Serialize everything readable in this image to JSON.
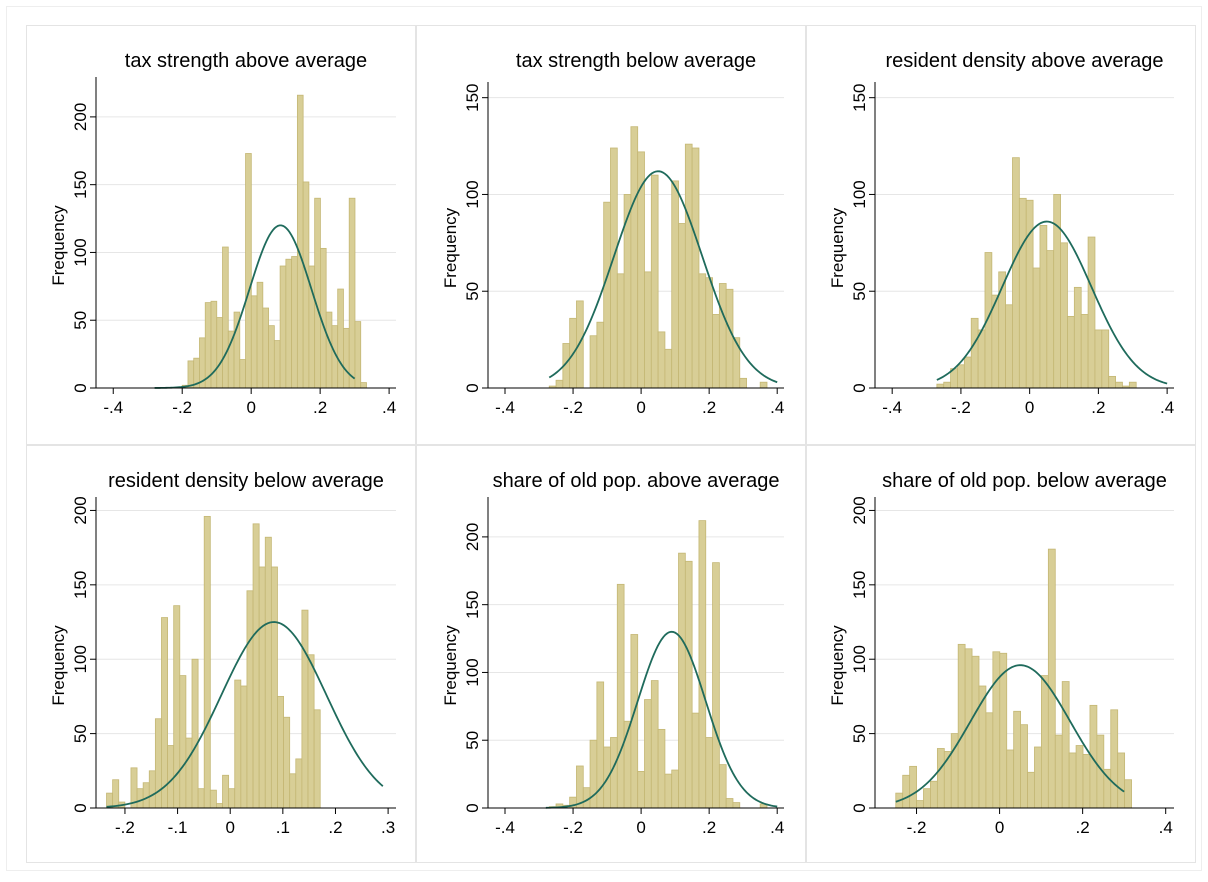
{
  "colors": {
    "bar_fill": "#D8CE96",
    "bar_stroke": "#C4B774",
    "curve": "#1F6B5C",
    "axis": "#000000",
    "grid": "#E6E6E6",
    "panel_border": "#E4E4E4"
  },
  "chart_data": [
    {
      "type": "bar",
      "title": "tax strength above average",
      "ylabel": "Frequency",
      "xlabel": "",
      "xlim": [
        -0.45,
        0.42
      ],
      "ylim": [
        0,
        225
      ],
      "xticks": [
        -0.4,
        -0.2,
        0,
        0.2,
        0.4
      ],
      "xtick_labels": [
        "-.4",
        "-.2",
        "0",
        ".2",
        ".4"
      ],
      "yticks": [
        0,
        50,
        100,
        150,
        200
      ],
      "ytick_labels": [
        "0",
        "50",
        "100",
        "150",
        "200"
      ],
      "grid": true,
      "bin_start": -0.2,
      "bin_width": 0.0167,
      "values": [
        2,
        20,
        22,
        37,
        63,
        64,
        52,
        104,
        42,
        56,
        21,
        173,
        68,
        78,
        59,
        46,
        35,
        90,
        95,
        97,
        216,
        152,
        90,
        140,
        103,
        56,
        46,
        73,
        44,
        140,
        49,
        4
      ],
      "normal": {
        "mean": 0.085,
        "peak": 120,
        "sd": 0.09,
        "from": -0.28,
        "to": 0.3
      }
    },
    {
      "type": "bar",
      "title": "tax strength below average",
      "ylabel": "Frequency",
      "xlabel": "",
      "xlim": [
        -0.45,
        0.42
      ],
      "ylim": [
        0,
        155
      ],
      "xticks": [
        -0.4,
        -0.2,
        0,
        0.2,
        0.4
      ],
      "xtick_labels": [
        "-.4",
        "-.2",
        "0",
        ".2",
        ".4"
      ],
      "yticks": [
        0,
        50,
        100,
        150
      ],
      "ytick_labels": [
        "0",
        "50",
        "100",
        "150"
      ],
      "grid": true,
      "bin_start": -0.27,
      "bin_width": 0.02,
      "values": [
        1,
        4,
        23,
        36,
        45,
        0,
        27,
        34,
        96,
        124,
        59,
        100,
        135,
        122,
        60,
        110,
        29,
        20,
        107,
        85,
        126,
        124,
        59,
        57,
        38,
        54,
        51,
        26,
        5,
        0,
        0,
        3
      ],
      "normal": {
        "mean": 0.05,
        "peak": 112,
        "sd": 0.13,
        "from": -0.27,
        "to": 0.4
      }
    },
    {
      "type": "bar",
      "title": "resident density above average",
      "ylabel": "Frequency",
      "xlabel": "",
      "xlim": [
        -0.45,
        0.42
      ],
      "ylim": [
        0,
        155
      ],
      "xticks": [
        -0.4,
        -0.2,
        0,
        0.2,
        0.4
      ],
      "xtick_labels": [
        "-.4",
        "-.2",
        "0",
        ".2",
        ".4"
      ],
      "yticks": [
        0,
        50,
        100,
        150
      ],
      "ytick_labels": [
        "0",
        "50",
        "100",
        "150"
      ],
      "grid": true,
      "bin_start": -0.27,
      "bin_width": 0.02,
      "values": [
        2,
        3,
        10,
        12,
        16,
        36,
        30,
        70,
        48,
        60,
        43,
        119,
        98,
        97,
        62,
        84,
        71,
        100,
        75,
        37,
        52,
        38,
        78,
        30,
        30,
        6,
        3,
        1,
        3,
        0,
        0,
        0
      ],
      "normal": {
        "mean": 0.05,
        "peak": 86,
        "sd": 0.13,
        "from": -0.27,
        "to": 0.4
      }
    },
    {
      "type": "bar",
      "title": "resident density below average",
      "ylabel": "Frequency",
      "xlabel": "",
      "xlim": [
        -0.255,
        0.315
      ],
      "ylim": [
        0,
        205
      ],
      "xticks": [
        -0.2,
        -0.1,
        0,
        0.1,
        0.2,
        0.3
      ],
      "xtick_labels": [
        "-.2",
        "-.1",
        "0",
        ".1",
        ".2",
        ".3"
      ],
      "yticks": [
        0,
        50,
        100,
        150,
        200
      ],
      "ytick_labels": [
        "0",
        "50",
        "100",
        "150",
        "200"
      ],
      "grid": true,
      "bin_start": -0.235,
      "bin_width": 0.0116,
      "values": [
        10,
        19,
        4,
        0,
        27,
        13,
        17,
        25,
        60,
        128,
        42,
        136,
        89,
        47,
        100,
        13,
        196,
        12,
        3,
        22,
        13,
        86,
        82,
        146,
        191,
        162,
        182,
        162,
        75,
        61,
        23,
        33,
        133,
        103,
        66
      ],
      "normal": {
        "mean": 0.083,
        "peak": 125,
        "sd": 0.1,
        "from": -0.235,
        "to": 0.29
      }
    },
    {
      "type": "bar",
      "title": "share of old pop. above average",
      "ylabel": "Frequency",
      "xlabel": "",
      "xlim": [
        -0.45,
        0.42
      ],
      "ylim": [
        0,
        225
      ],
      "xticks": [
        -0.4,
        -0.2,
        0,
        0.2,
        0.4
      ],
      "xtick_labels": [
        "-.4",
        "-.2",
        "0",
        ".2",
        ".4"
      ],
      "yticks": [
        0,
        50,
        100,
        150,
        200
      ],
      "ytick_labels": [
        "0",
        "50",
        "100",
        "150",
        "200"
      ],
      "grid": true,
      "bin_start": -0.27,
      "bin_width": 0.02,
      "values": [
        1,
        3,
        2,
        8,
        31,
        15,
        50,
        93,
        45,
        52,
        165,
        64,
        128,
        27,
        80,
        94,
        58,
        25,
        28,
        188,
        182,
        70,
        212,
        52,
        181,
        32,
        7,
        4,
        0,
        0,
        0,
        3
      ],
      "normal": {
        "mean": 0.09,
        "peak": 130,
        "sd": 0.1,
        "from": -0.28,
        "to": 0.4
      }
    },
    {
      "type": "bar",
      "title": "share of old pop. below average",
      "ylabel": "Frequency",
      "xlabel": "",
      "xlim": [
        -0.3,
        0.42
      ],
      "ylim": [
        0,
        205
      ],
      "xticks": [
        -0.2,
        0,
        0.2,
        0.4
      ],
      "xtick_labels": [
        "-.2",
        "0",
        ".2",
        ".4"
      ],
      "yticks": [
        0,
        50,
        100,
        150,
        200
      ],
      "ytick_labels": [
        "0",
        "50",
        "100",
        "150",
        "200"
      ],
      "grid": true,
      "bin_start": -0.25,
      "bin_width": 0.0167,
      "values": [
        10,
        22,
        28,
        5,
        13,
        18,
        40,
        38,
        50,
        110,
        107,
        102,
        82,
        64,
        105,
        104,
        39,
        65,
        56,
        24,
        41,
        89,
        174,
        49,
        85,
        37,
        42,
        36,
        69,
        49,
        26,
        66,
        37,
        19
      ],
      "normal": {
        "mean": 0.05,
        "peak": 96,
        "sd": 0.12,
        "from": -0.25,
        "to": 0.3
      }
    }
  ]
}
